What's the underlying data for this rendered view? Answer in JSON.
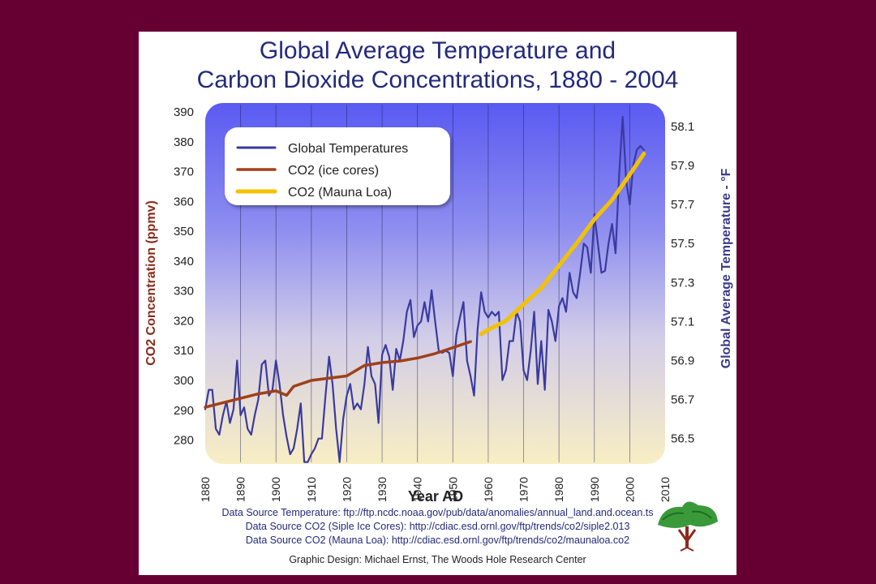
{
  "colors": {
    "background": "#660033",
    "title": "#232a7a",
    "temperature": "#3a3aa0",
    "co2_ice": "#a0401a",
    "co2_mauna": "#f2c200",
    "left_axis": "#8b2a1a",
    "right_axis": "#3a3a8a"
  },
  "chart_data": {
    "type": "line",
    "title": "Global Average Temperature and",
    "title_line2": "Carbon Dioxide Concentrations, 1880 - 2004",
    "xlabel": "Year AD",
    "ylabel_left": "CO2 Concentration (ppmv)",
    "ylabel_right": "Global Average Temperature - °F",
    "xlim": [
      1880,
      2010
    ],
    "ylim_left": [
      272,
      393
    ],
    "ylim_right": [
      56.37,
      58.22
    ],
    "x_ticks": [
      "1880",
      "1890",
      "1900",
      "1910",
      "1920",
      "1930",
      "1940",
      "1950",
      "1960",
      "1970",
      "1980",
      "1990",
      "2000",
      "2010"
    ],
    "y_left_ticks": [
      "390",
      "380",
      "370",
      "360",
      "350",
      "340",
      "330",
      "320",
      "310",
      "300",
      "290",
      "280"
    ],
    "y_right_ticks": [
      "58.1",
      "57.9",
      "57.7",
      "57.5",
      "57.3",
      "57.1",
      "56.9",
      "56.7",
      "56.5"
    ],
    "grid": true,
    "legend_position": "top-left",
    "series": [
      {
        "name": "Global Temperatures",
        "axis": "right",
        "x": [
          1880,
          1881,
          1882,
          1883,
          1884,
          1885,
          1886,
          1887,
          1888,
          1889,
          1890,
          1891,
          1892,
          1893,
          1894,
          1895,
          1896,
          1897,
          1898,
          1899,
          1900,
          1901,
          1902,
          1903,
          1904,
          1905,
          1906,
          1907,
          1908,
          1909,
          1910,
          1911,
          1912,
          1913,
          1914,
          1915,
          1916,
          1917,
          1918,
          1919,
          1920,
          1921,
          1922,
          1923,
          1924,
          1925,
          1926,
          1927,
          1928,
          1929,
          1930,
          1931,
          1932,
          1933,
          1934,
          1935,
          1936,
          1937,
          1938,
          1939,
          1940,
          1941,
          1942,
          1943,
          1944,
          1945,
          1946,
          1947,
          1948,
          1949,
          1950,
          1951,
          1952,
          1953,
          1954,
          1955,
          1956,
          1957,
          1958,
          1959,
          1960,
          1961,
          1962,
          1963,
          1964,
          1965,
          1966,
          1967,
          1968,
          1969,
          1970,
          1971,
          1972,
          1973,
          1974,
          1975,
          1976,
          1977,
          1978,
          1979,
          1980,
          1981,
          1982,
          1983,
          1984,
          1985,
          1986,
          1987,
          1988,
          1989,
          1990,
          1991,
          1992,
          1993,
          1994,
          1995,
          1996,
          1997,
          1998,
          1999,
          2000,
          2001,
          2002,
          2003,
          2004
        ],
        "values": [
          56.65,
          56.75,
          56.75,
          56.55,
          56.52,
          56.62,
          56.69,
          56.58,
          56.65,
          56.9,
          56.62,
          56.66,
          56.55,
          56.52,
          56.62,
          56.7,
          56.88,
          56.9,
          56.72,
          56.75,
          56.9,
          56.78,
          56.62,
          56.51,
          56.42,
          56.45,
          56.55,
          56.68,
          56.38,
          56.38,
          56.42,
          56.45,
          56.5,
          56.5,
          56.72,
          56.92,
          56.78,
          56.55,
          56.38,
          56.6,
          56.72,
          56.78,
          56.65,
          56.68,
          56.65,
          56.78,
          56.97,
          56.82,
          56.78,
          56.58,
          56.93,
          56.98,
          56.92,
          56.75,
          56.96,
          56.9,
          57.0,
          57.15,
          57.21,
          57.02,
          57.08,
          57.1,
          57.2,
          57.1,
          57.26,
          57.1,
          56.95,
          56.94,
          56.95,
          56.94,
          56.82,
          57.03,
          57.12,
          57.2,
          56.9,
          56.82,
          56.72,
          57.06,
          57.25,
          57.15,
          57.12,
          57.15,
          57.13,
          57.15,
          56.8,
          56.85,
          57.0,
          57.0,
          57.15,
          57.1,
          56.85,
          56.8,
          56.95,
          57.15,
          56.78,
          57.0,
          56.75,
          57.16,
          57.1,
          57.0,
          57.18,
          57.22,
          57.15,
          57.35,
          57.25,
          57.22,
          57.35,
          57.5,
          57.48,
          57.35,
          57.65,
          57.5,
          57.35,
          57.36,
          57.5,
          57.6,
          57.45,
          57.85,
          58.15,
          57.82,
          57.7,
          57.9,
          57.98,
          58.0,
          57.98
        ]
      },
      {
        "name": "CO2 (ice cores)",
        "axis": "left",
        "x": [
          1880,
          1885,
          1890,
          1895,
          1900,
          1903,
          1905,
          1910,
          1920,
          1925,
          1930,
          1935,
          1940,
          1945,
          1950,
          1955
        ],
        "values": [
          291,
          292.5,
          294,
          295.5,
          296.5,
          295,
          298,
          300,
          301.5,
          305,
          306,
          306.5,
          307.5,
          309,
          311,
          313
        ]
      },
      {
        "name": "CO2 (Mauna Loa)",
        "axis": "left",
        "x": [
          1958,
          1960,
          1965,
          1970,
          1975,
          1980,
          1985,
          1990,
          1995,
          2000,
          2004
        ],
        "values": [
          315.5,
          317,
          320,
          325.5,
          331,
          338.5,
          346,
          354,
          360.5,
          369,
          376
        ]
      }
    ]
  },
  "sources": {
    "line1": "Data Source Temperature: ftp://ftp.ncdc.noaa.gov/pub/data/anomalies/annual_land.and.ocean.ts",
    "line2": "Data Source CO2 (Siple Ice Cores): http://cdiac.esd.ornl.gov/ftp/trends/co2/siple2.013",
    "line3": "Data Source CO2 (Mauna Loa): http://cdiac.esd.ornl.gov/ftp/trends/co2/maunaloa.co2"
  },
  "credit": "Graphic Design: Michael Ernst, The Woods Hole Research Center",
  "logo_icon": "tree-logo-icon"
}
